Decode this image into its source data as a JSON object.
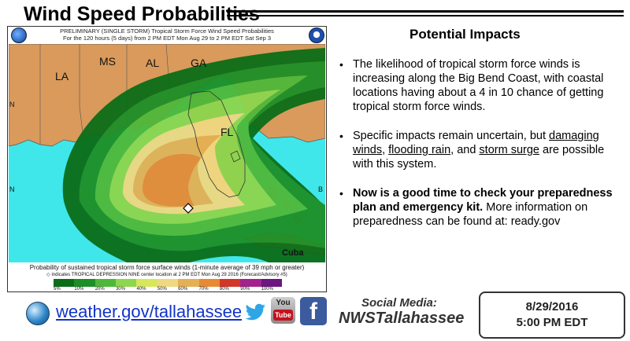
{
  "header": {
    "title": "Wind Speed Probabilities"
  },
  "map": {
    "header_line1": "PRELIMINARY (SINGLE STORM) Tropical Storm Force Wind Speed Probabilities",
    "header_line2": "For the 120 hours (5 days) from 2 PM EDT Mon Aug 29 to 2 PM EDT Sat Sep 3",
    "states": [
      "LA",
      "MS",
      "AL",
      "GA",
      "FL"
    ],
    "lat_labels": [
      "N",
      "N",
      "N"
    ],
    "lon_label": "B",
    "cuba_label": "Cuba",
    "footer_line1": "Probability of sustained tropical storm force surface winds (1-minute average of 39 mph or greater)",
    "footer_line2": "◇ indicates TROPICAL DEPRESSION NINE center location at 2 PM EDT Mon Aug 29 2016 (Forecast/Advisory #5)",
    "scale": [
      {
        "label": "5%",
        "color": "#0b6d18"
      },
      {
        "label": "10%",
        "color": "#1d8f27"
      },
      {
        "label": "20%",
        "color": "#4fb83a"
      },
      {
        "label": "30%",
        "color": "#8dd64e"
      },
      {
        "label": "40%",
        "color": "#d7e75a"
      },
      {
        "label": "50%",
        "color": "#f0d880"
      },
      {
        "label": "60%",
        "color": "#e5b053"
      },
      {
        "label": "70%",
        "color": "#e88a34"
      },
      {
        "label": "80%",
        "color": "#d2372a"
      },
      {
        "label": "90%",
        "color": "#a4228e"
      },
      {
        "label": "100%",
        "color": "#6d1580"
      }
    ]
  },
  "impacts": {
    "title": "Potential Impacts",
    "bullet1": "The likelihood of tropical storm force winds is increasing along the Big Bend Coast, with coastal locations having about a 4 in 10 chance of getting tropical storm force winds.",
    "bullet2_pre": "Specific impacts remain uncertain, but",
    "bullet2_u1": "damaging winds",
    "bullet2_sep1": ",",
    "bullet2_u2": "flooding rain",
    "bullet2_sep2": ", and",
    "bullet2_u3": "storm surge",
    "bullet2_post": "are possible with this system.",
    "bullet3_bold": "Now is a good time to check your preparedness plan and emergency kit.",
    "bullet3_rest": "More information on preparedness can be found at: ready.gov"
  },
  "footer": {
    "website": "weather.gov/tallahassee",
    "social_label": "Social Media:",
    "social_handle": "NWSTallahassee",
    "date": "8/29/2016",
    "time": "5:00 PM EDT",
    "youtube_top": "You",
    "youtube_bottom": "Tube",
    "facebook_glyph": "f"
  },
  "colors": {
    "land": "#d99a5c",
    "water": "#3fe7ea",
    "link": "#1233c9"
  }
}
